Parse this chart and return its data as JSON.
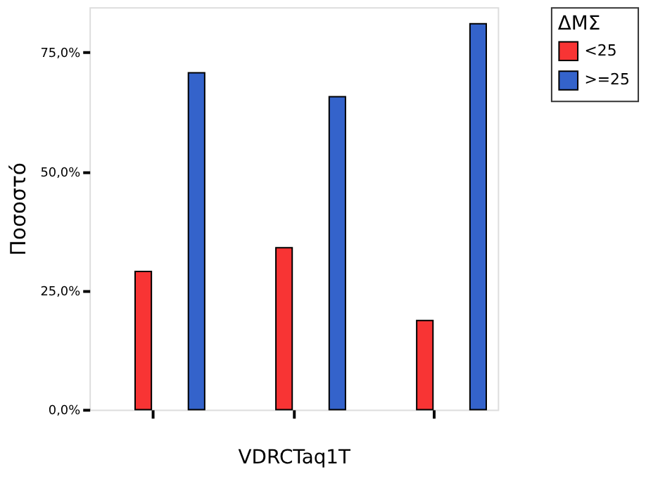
{
  "chart_data": {
    "type": "bar",
    "xlabel": "VDRCTaq1T",
    "ylabel": "Ποσοστό",
    "legend_title": "ΔΜΣ",
    "categories": [
      null,
      null,
      null
    ],
    "series": [
      {
        "name": "<25",
        "color": "#f83434",
        "values": [
          29.0,
          34.0,
          18.7
        ]
      },
      {
        "name": ">=25",
        "color": "#3463cb",
        "values": [
          70.7,
          65.7,
          81.0
        ]
      }
    ],
    "ylim": [
      0,
      84.5
    ],
    "yticks": [
      {
        "value": 0,
        "label": "0,0%"
      },
      {
        "value": 25,
        "label": "25,0%"
      },
      {
        "value": 50,
        "label": "50,0%"
      },
      {
        "value": 75,
        "label": "75,0%"
      }
    ],
    "grid": false,
    "legend": "top right",
    "tick_labels": "y"
  }
}
